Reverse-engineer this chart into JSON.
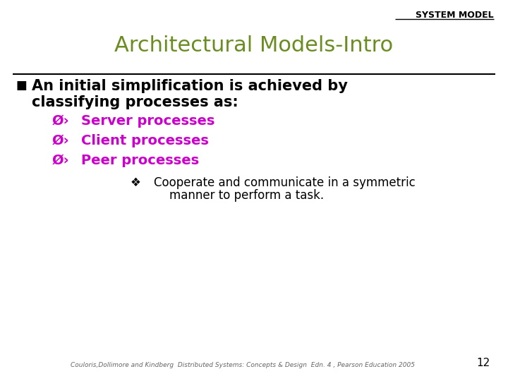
{
  "background_color": "#ffffff",
  "header_text": "SYSTEM MODEL",
  "header_color": "#000000",
  "header_fontsize": 9,
  "title_text": "Architectural Models-Intro",
  "title_color": "#6b8c21",
  "title_fontsize": 22,
  "divider_color": "#000000",
  "divider_lw": 1.5,
  "bullet_marker": "■",
  "bullet_text_line1": "An initial simplification is achieved by",
  "bullet_text_line2": "classifying processes as:",
  "bullet_color": "#000000",
  "bullet_fontsize": 15,
  "sub_bullets": [
    "Server processes",
    "Client processes",
    "Peer processes"
  ],
  "sub_bullet_prefix": "Ø",
  "sub_bullet_color": "#cc00cc",
  "sub_bullet_fontsize": 14,
  "sub_sub_bullet_prefix": "❖",
  "sub_sub_line1": "Cooperate and communicate in a symmetric",
  "sub_sub_line2": "manner to perform a task.",
  "sub_sub_color": "#000000",
  "sub_sub_fontsize": 12,
  "footer_text": "Couloris,Dollimore and Kindberg  Distributed Systems: Concepts & Design  Edn. 4 , Pearson Education 2005",
  "footer_color": "#666666",
  "footer_fontsize": 6.5,
  "page_number": "12",
  "page_number_fontsize": 11,
  "page_number_color": "#000000"
}
